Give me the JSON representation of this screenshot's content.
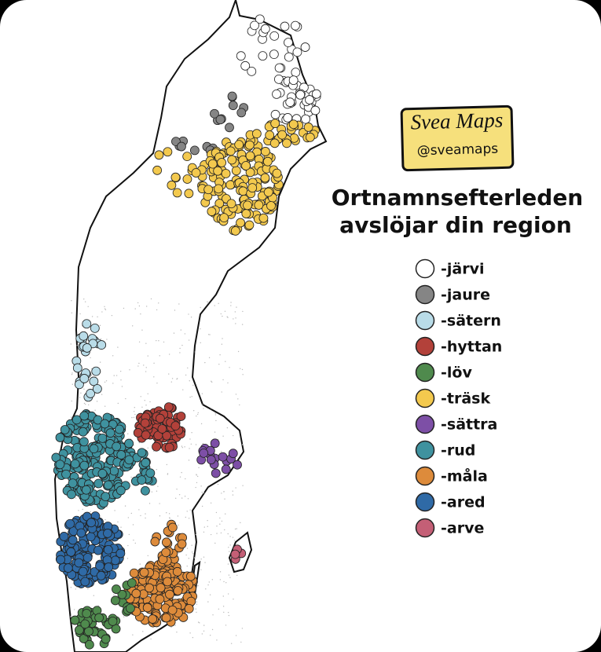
{
  "brand": {
    "name": "Svea Maps",
    "handle": "@sveamaps"
  },
  "title": [
    "Ortnamnsefterleden",
    "avslöjar din region"
  ],
  "legend": [
    {
      "label": "-järvi",
      "color": "#ffffff"
    },
    {
      "label": "-jaure",
      "color": "#858585"
    },
    {
      "label": "-sätern",
      "color": "#b9dce8"
    },
    {
      "label": "-hyttan",
      "color": "#b3413a"
    },
    {
      "label": "-löv",
      "color": "#4f8a4d"
    },
    {
      "label": "-träsk",
      "color": "#f3c94e"
    },
    {
      "label": "-sättra",
      "color": "#7d4fa6"
    },
    {
      "label": "-rud",
      "color": "#3f929f"
    },
    {
      "label": "-måla",
      "color": "#dd8b3b"
    },
    {
      "label": "-ared",
      "color": "#2f6aa6"
    },
    {
      "label": "-arve",
      "color": "#c45f76"
    }
  ]
}
